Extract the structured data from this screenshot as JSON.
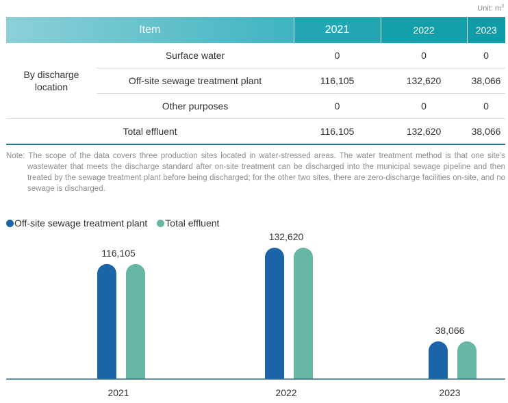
{
  "unit": {
    "prefix": "Unit: m",
    "sup": "3"
  },
  "table": {
    "headers": {
      "item": "Item",
      "y2021": "2021",
      "y2022": "2022",
      "y2023": "2023"
    },
    "group_label": "By discharge location",
    "rows": [
      {
        "label": "Surface water",
        "v2021": "0",
        "v2022": "0",
        "v2023": "0"
      },
      {
        "label": "Off-site sewage treatment plant",
        "v2021": "116,105",
        "v2022": "132,620",
        "v2023": "38,066"
      },
      {
        "label": "Other purposes",
        "v2021": "0",
        "v2022": "0",
        "v2023": "0"
      }
    ],
    "total": {
      "label": "Total effluent",
      "v2021": "116,105",
      "v2022": "132,620",
      "v2023": "38,066"
    }
  },
  "note": "Note: The scope of the data covers three production sites located in water-stressed areas. The water treatment method is that one site's wastewater that meets the discharge standard after on-site treatment can be discharged into the municipal sewage pipeline and then treated by the sewage treatment plant before being discharged; for the other two sites, there are zero-discharge facilities on-site, and no sewage is discharged.",
  "chart_data": {
    "type": "bar",
    "title": "",
    "xlabel": "",
    "ylabel": "",
    "categories": [
      "2021",
      "2022",
      "2023"
    ],
    "series": [
      {
        "name": "Off-site sewage treatment plant",
        "values": [
          116105,
          132620,
          38066
        ],
        "color": "#1b64a8"
      },
      {
        "name": "Total effluent",
        "values": [
          116105,
          132620,
          38066
        ],
        "color": "#68b7a5"
      }
    ],
    "data_labels": [
      "116,105",
      "132,620",
      "38,066"
    ],
    "ylim": [
      0,
      132620
    ],
    "grid": false,
    "legend": "top-left",
    "axis_color": "#2a6f8e"
  }
}
